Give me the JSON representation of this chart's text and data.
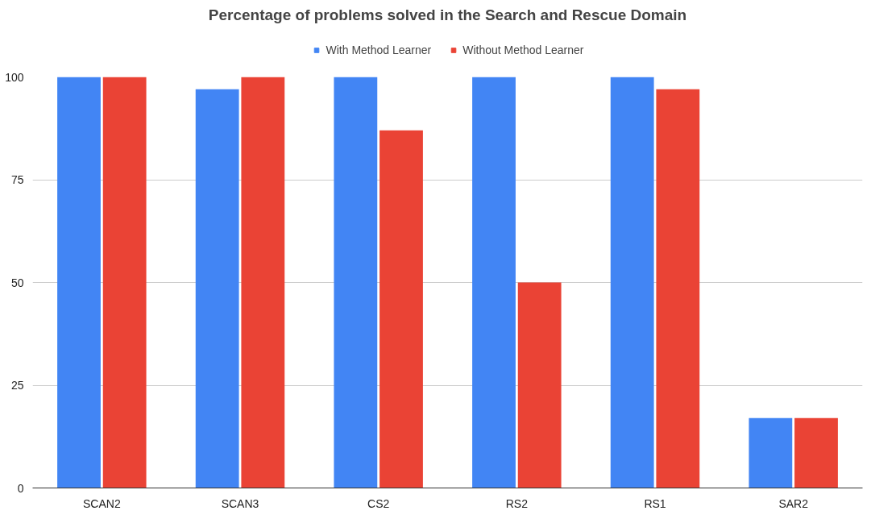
{
  "chart_data": {
    "type": "bar",
    "title": "Percentage of problems solved in the Search and Rescue Domain",
    "categories": [
      "SCAN2",
      "SCAN3",
      "CS2",
      "RS2",
      "RS1",
      "SAR2"
    ],
    "series": [
      {
        "name": "With Method Learner",
        "color": "#4285f4",
        "values": [
          100,
          97,
          100,
          100,
          100,
          17
        ]
      },
      {
        "name": "Without Method Learner",
        "color": "#ea4335",
        "values": [
          100,
          100,
          87,
          50,
          97,
          17
        ]
      }
    ],
    "ylim": [
      0,
      100
    ],
    "yticks": [
      0,
      25,
      50,
      75,
      100
    ],
    "grid": "y",
    "legend": "top"
  }
}
